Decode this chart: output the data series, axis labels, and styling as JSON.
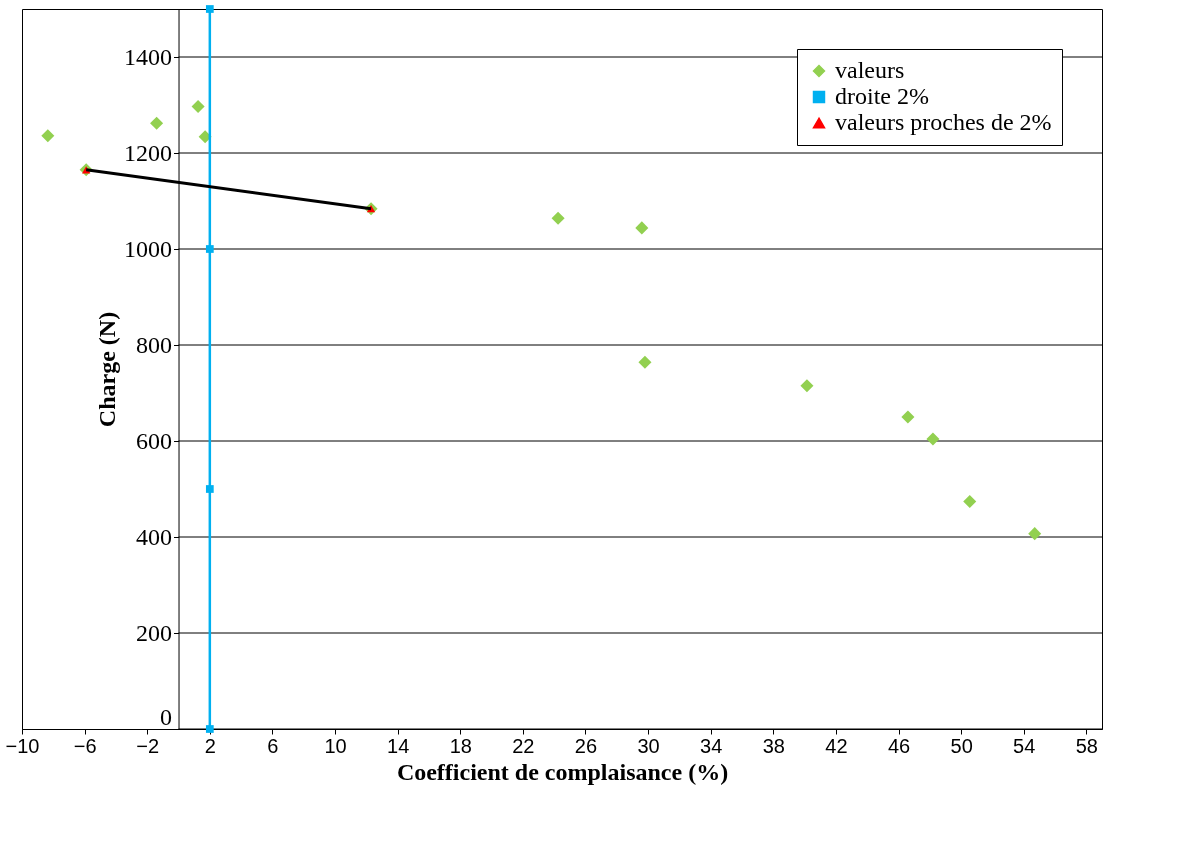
{
  "chart_data": {
    "type": "scatter",
    "xlabel": "Coefficient de complaisance (%)",
    "ylabel": "Charge (N)",
    "xlim": [
      -10,
      59
    ],
    "xticks": [
      -10,
      -6,
      -2,
      2,
      6,
      10,
      14,
      18,
      22,
      26,
      30,
      34,
      38,
      42,
      46,
      50,
      54,
      58
    ],
    "ylim": [
      0,
      1500
    ],
    "yticks": [
      0,
      200,
      400,
      600,
      800,
      1000,
      1200,
      1400
    ],
    "grid": "y",
    "legend": "top right",
    "series": [
      {
        "name": "valeurs",
        "marker": "diamond",
        "color": "#92d050",
        "x": [
          -8.35,
          -1.4,
          1.25,
          1.7,
          -5.9,
          12.3,
          24.25,
          29.6,
          29.8,
          40.15,
          46.6,
          48.2,
          50.55,
          54.7
        ],
        "values": [
          1236,
          1262,
          1297,
          1234,
          1165,
          1084,
          1064,
          1044,
          764,
          715,
          650,
          604,
          474,
          407
        ]
      },
      {
        "name": "droite 2%",
        "type": "line",
        "marker": "square",
        "color": "#00b0f0",
        "x": [
          2,
          2,
          2,
          2
        ],
        "values": [
          0,
          500,
          1000,
          1500
        ]
      },
      {
        "name": "valeurs proches de 2%",
        "marker": "triangle",
        "color": "#ff0000",
        "x": [
          -5.9,
          12.3
        ],
        "values": [
          1165,
          1084
        ]
      },
      {
        "type": "line",
        "marker": "none",
        "color": "#000000",
        "x": [
          -5.9,
          12.3
        ],
        "values": [
          1165,
          1084
        ]
      }
    ]
  }
}
